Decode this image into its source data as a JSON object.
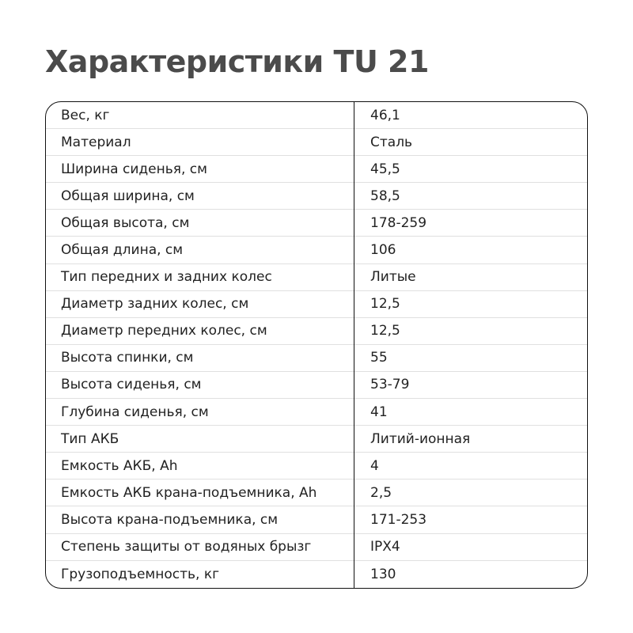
{
  "title": "Характеристики TU 21",
  "rows": [
    {
      "label": "Вес, кг",
      "value": "46,1"
    },
    {
      "label": "Материал",
      "value": "Сталь"
    },
    {
      "label": "Ширина сиденья, см",
      "value": "45,5"
    },
    {
      "label": "Общая ширина, см",
      "value": "58,5"
    },
    {
      "label": "Общая высота, см",
      "value": "178-259"
    },
    {
      "label": "Общая длина, см",
      "value": "106"
    },
    {
      "label": "Тип передних и задних колес",
      "value": "Литые"
    },
    {
      "label": "Диаметр задних колес, см",
      "value": "12,5"
    },
    {
      "label": "Диаметр передних колес, см",
      "value": "12,5"
    },
    {
      "label": "Высота спинки, см",
      "value": "55"
    },
    {
      "label": "Высота сиденья, см",
      "value": "53-79"
    },
    {
      "label": "Глубина сиденья, см",
      "value": "41"
    },
    {
      "label": "Тип АКБ",
      "value": "Литий-ионная"
    },
    {
      "label": "Емкость АКБ, Ah",
      "value": "4"
    },
    {
      "label": "Емкость АКБ крана-подъемника, Ah",
      "value": "2,5"
    },
    {
      "label": "Высота крана-подъемника, см",
      "value": "171-253"
    },
    {
      "label": "Степень защиты от водяных брызг",
      "value": "IPX4"
    },
    {
      "label": "Грузоподъемность, кг",
      "value": "130"
    }
  ]
}
